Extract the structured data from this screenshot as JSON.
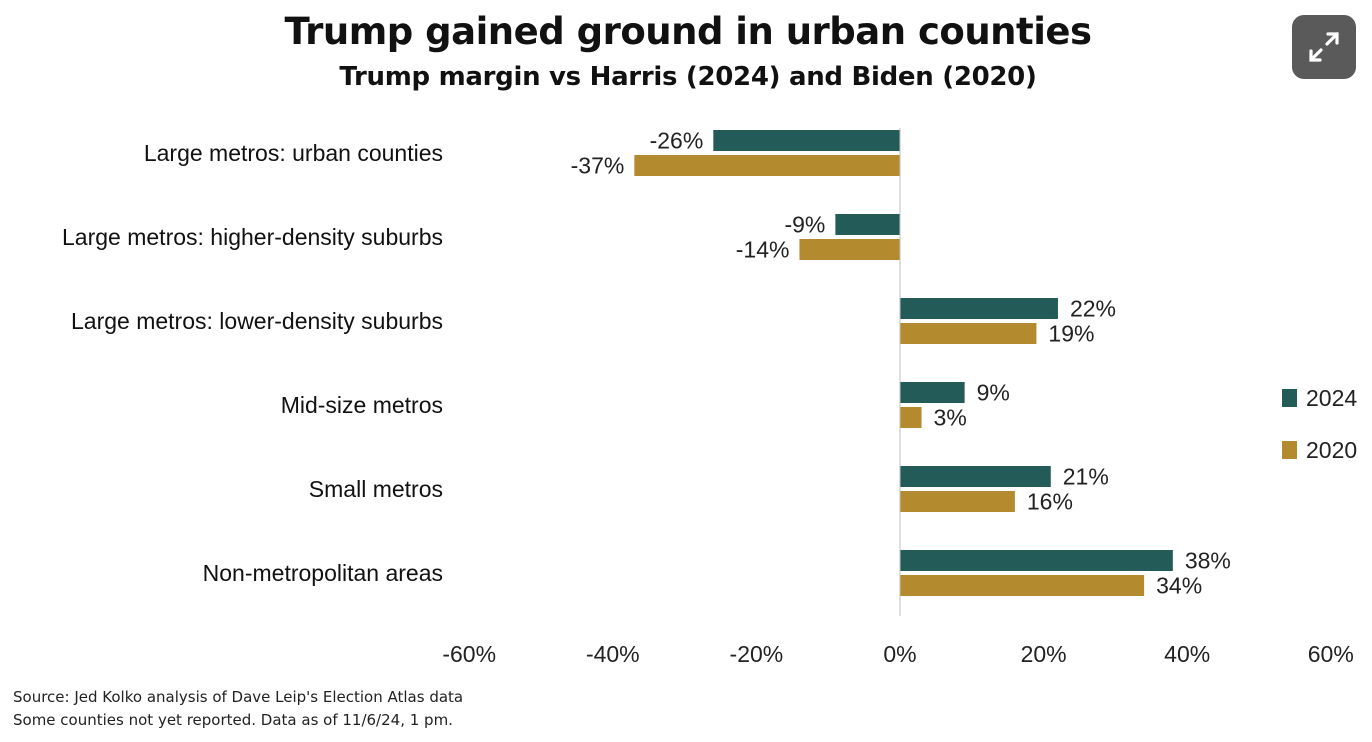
{
  "title": "Trump gained ground in urban counties",
  "subtitle": "Trump margin vs Harris (2024) and Biden (2020)",
  "expand_button": {
    "icon": "expand-icon"
  },
  "source_lines": [
    "Source: Jed Kolko analysis of Dave Leip's Election Atlas data",
    "Some counties not yet reported. Data as of 11/6/24, 1 pm."
  ],
  "colors": {
    "2024": "#235b59",
    "2020": "#b38a2d"
  },
  "chart_data": {
    "type": "bar",
    "orientation": "horizontal",
    "title": "Trump gained ground in urban counties",
    "subtitle": "Trump margin vs Harris (2024) and Biden (2020)",
    "categories": [
      "Large metros: urban counties",
      "Large metros: higher-density suburbs",
      "Large metros: lower-density suburbs",
      "Mid-size metros",
      "Small metros",
      "Non-metropolitan areas"
    ],
    "series": [
      {
        "name": "2024",
        "values": [
          -26,
          -9,
          22,
          9,
          21,
          38
        ],
        "labels": [
          "-26%",
          "-9%",
          "22%",
          "9%",
          "21%",
          "38%"
        ]
      },
      {
        "name": "2020",
        "values": [
          -37,
          -14,
          19,
          3,
          16,
          34
        ],
        "labels": [
          "-37%",
          "-14%",
          "19%",
          "3%",
          "16%",
          "34%"
        ]
      }
    ],
    "xlim": [
      -60,
      60
    ],
    "xticks": [
      -60,
      -40,
      -20,
      0,
      20,
      40,
      60
    ],
    "xtick_labels": [
      "-60%",
      "-40%",
      "-20%",
      "0%",
      "20%",
      "40%",
      "60%"
    ],
    "xlabel": "",
    "ylabel": "",
    "grid": false,
    "legend_position": "right"
  }
}
